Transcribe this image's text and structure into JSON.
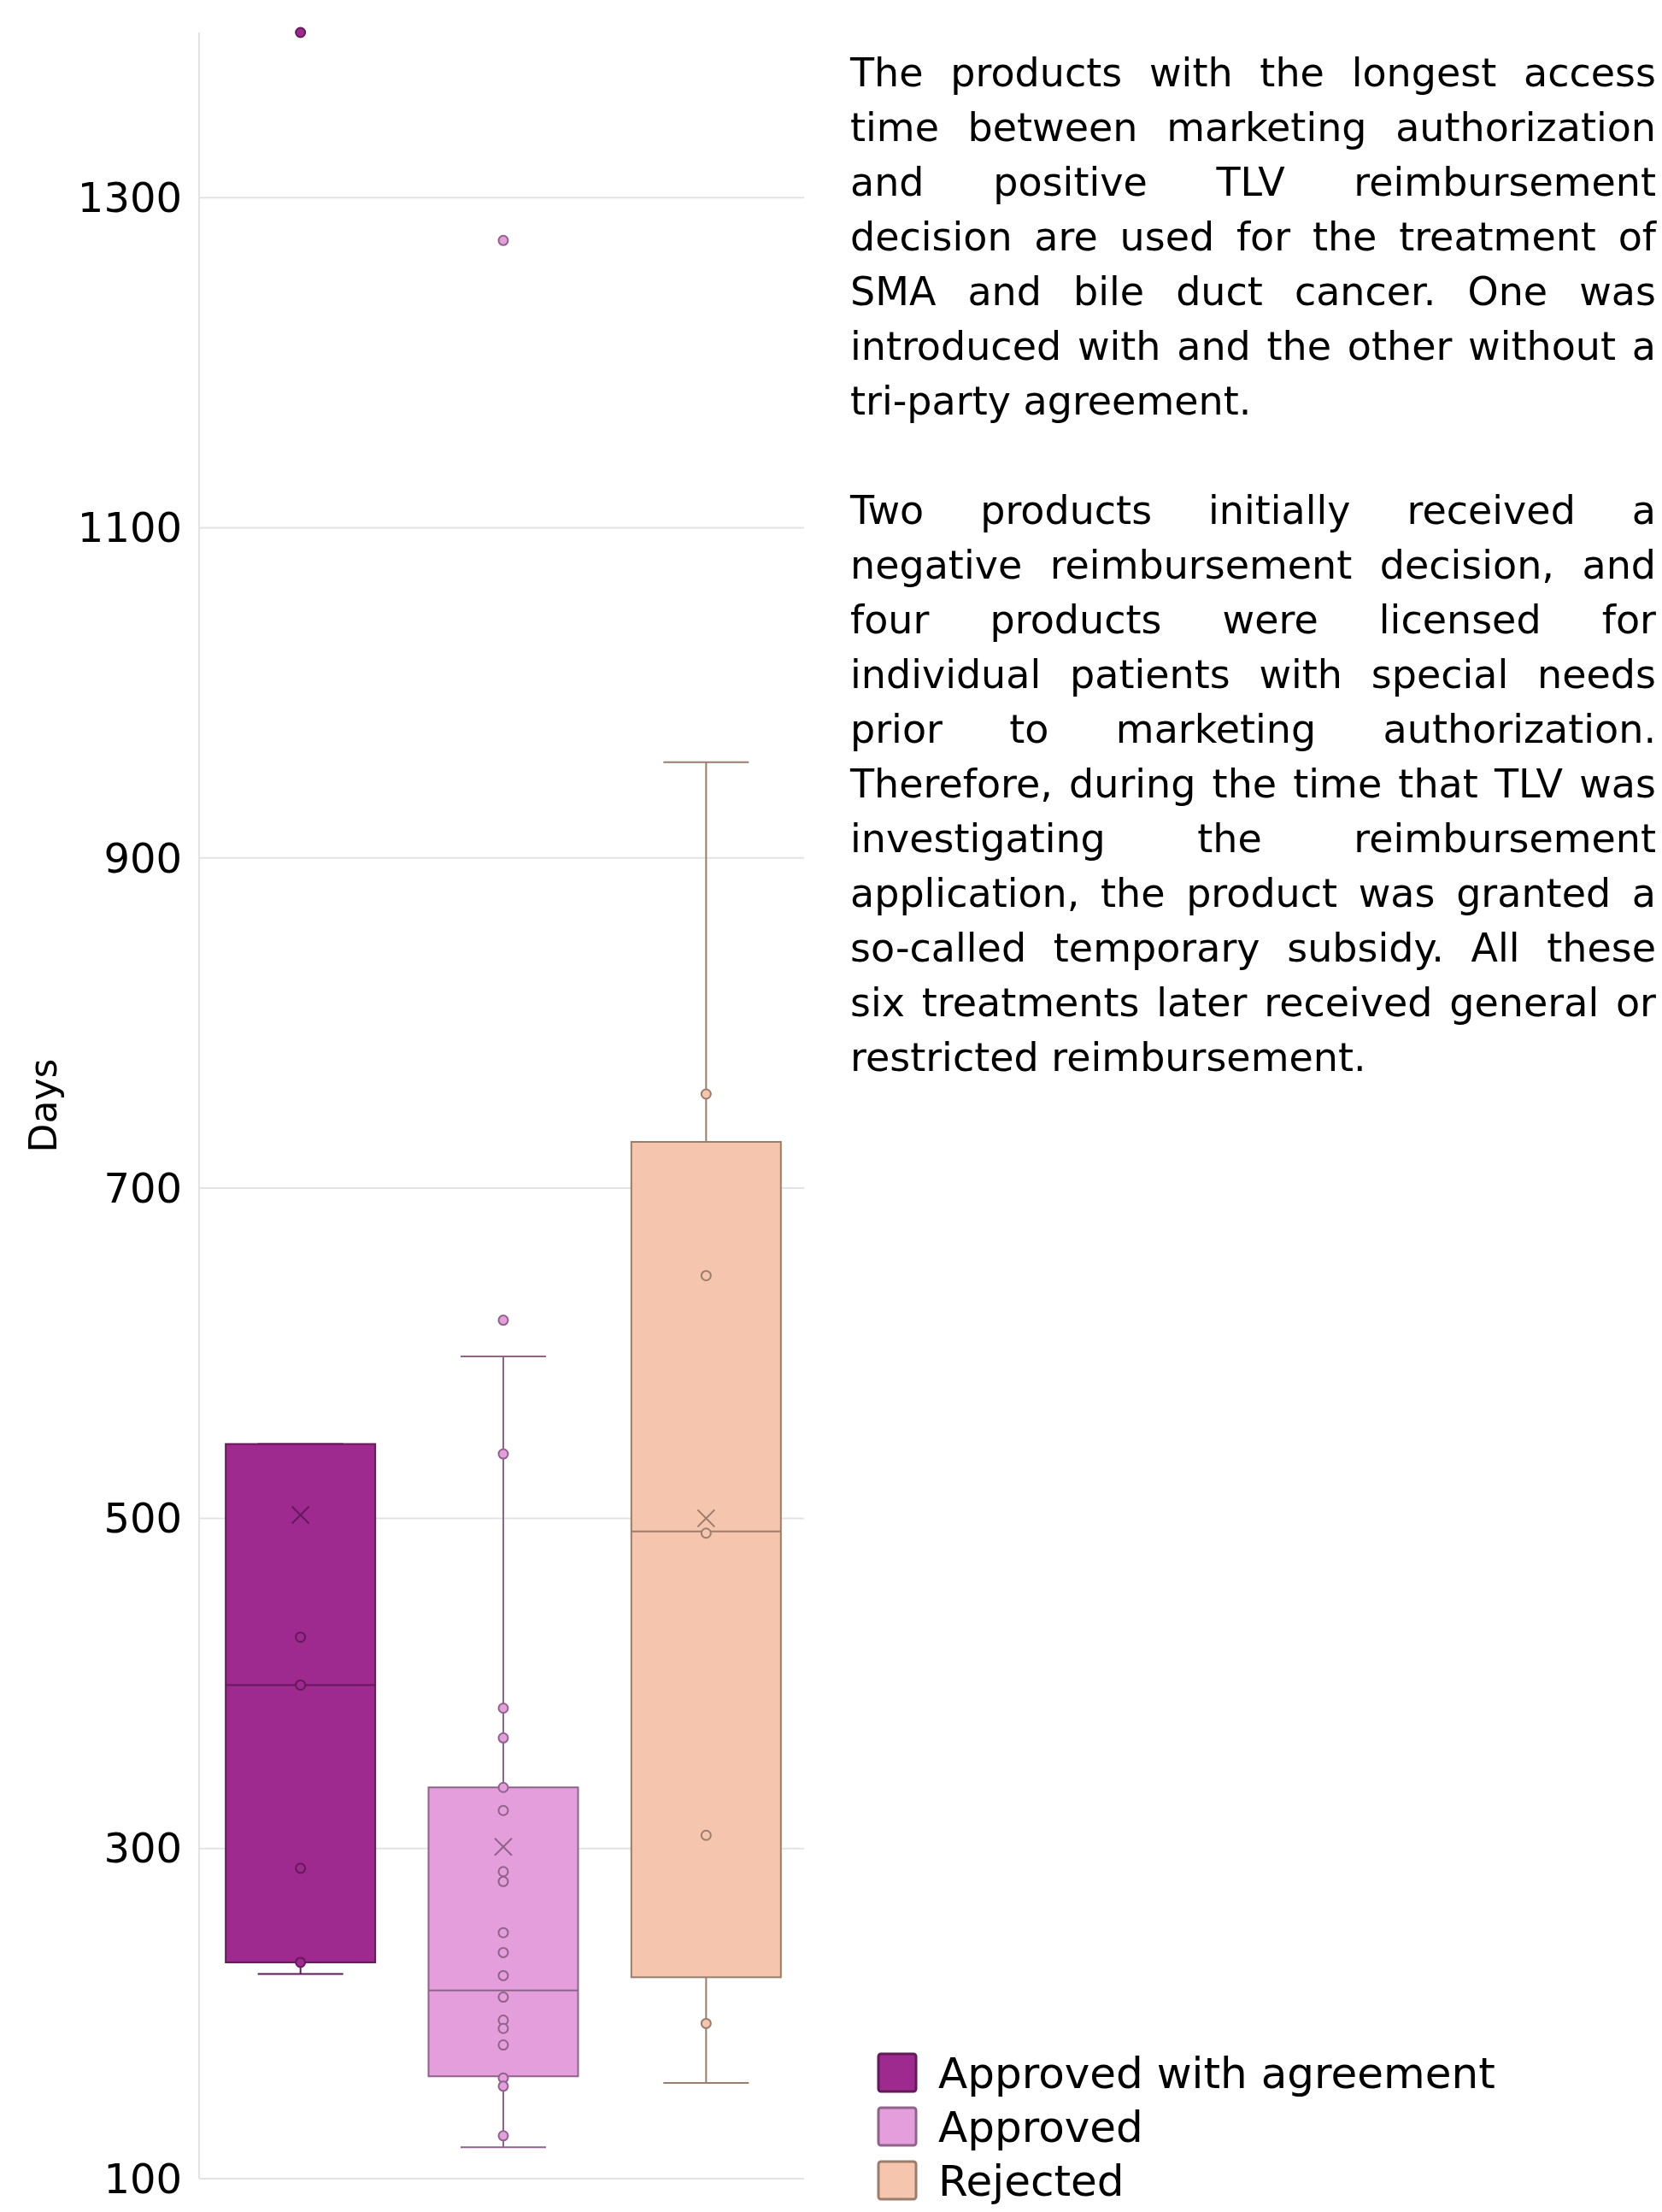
{
  "chart_data": {
    "type": "box",
    "ylabel": "Days",
    "categories": [
      null,
      null,
      null
    ],
    "ylim": [
      100,
      1400
    ],
    "yticks": [
      100,
      300,
      500,
      700,
      900,
      1100,
      1300
    ],
    "grid": "y",
    "legend": "bottom right",
    "marker": "circle",
    "series": [
      {
        "name": "Approved with agreement",
        "color": "#9e2a8f",
        "boxes": [
          {
            "low": 224,
            "q1": 231,
            "median": 399,
            "q3": 545,
            "high": 545,
            "mean": 502,
            "outliers": [
              1400
            ]
          },
          null,
          null
        ]
      },
      {
        "name": "Approved",
        "color": "#e39edb",
        "boxes": [
          null,
          {
            "low": 119,
            "q1": 162,
            "median": 214,
            "q3": 337,
            "high": 598,
            "mean": 301,
            "outliers": [
              620,
              1274
            ]
          },
          null
        ]
      },
      {
        "name": "Rejected",
        "color": "#f5c6ad",
        "boxes": [
          null,
          null,
          {
            "low": 158,
            "q1": 222,
            "median": 492,
            "q3": 728,
            "high": 958,
            "mean": 500
          }
        ]
      },
      {
        "type": "scatter",
        "colors": [
          "#9e2a8f",
          "#e39edb",
          "#f5c6ad"
        ],
        "values": [
          428,
          539,
          757
        ]
      },
      {
        "type": "scatter",
        "colors": [
          "#9e2a8f",
          "#e39edb",
          "#f5c6ad"
        ],
        "values": [
          399,
          385,
          647
        ]
      },
      {
        "type": "scatter",
        "colors": [
          "#9e2a8f",
          "#e39edb",
          "#f5c6ad"
        ],
        "values": [
          288,
          367,
          491
        ]
      },
      {
        "type": "scatter",
        "colors": [
          "#9e2a8f",
          "#e39edb",
          "#f5c6ad"
        ],
        "values": [
          231,
          337,
          308
        ]
      },
      {
        "type": "scatter",
        "colors": [
          "#9e2a8f",
          "#e39edb",
          "#f5c6ad"
        ],
        "values": [
          null,
          323,
          194
        ]
      },
      {
        "type": "scatter",
        "colors": [
          "#9e2a8f",
          "#e39edb",
          "#f5c6ad"
        ],
        "values": [
          null,
          286,
          null
        ]
      },
      {
        "type": "scatter",
        "colors": [
          "#9e2a8f",
          "#e39edb",
          "#f5c6ad"
        ],
        "values": [
          null,
          280,
          null
        ]
      },
      {
        "type": "scatter",
        "colors": [
          "#9e2a8f",
          "#e39edb",
          "#f5c6ad"
        ],
        "values": [
          null,
          249,
          null
        ]
      },
      {
        "type": "scatter",
        "colors": [
          "#9e2a8f",
          "#e39edb",
          "#f5c6ad"
        ],
        "values": [
          null,
          237,
          null
        ]
      },
      {
        "type": "scatter",
        "colors": [
          "#9e2a8f",
          "#e39edb",
          "#f5c6ad"
        ],
        "values": [
          null,
          223,
          null
        ]
      },
      {
        "type": "scatter",
        "colors": [
          "#9e2a8f",
          "#e39edb",
          "#f5c6ad"
        ],
        "values": [
          null,
          210,
          null
        ]
      },
      {
        "type": "scatter",
        "colors": [
          "#9e2a8f",
          "#e39edb",
          "#f5c6ad"
        ],
        "values": [
          null,
          196,
          null
        ]
      },
      {
        "type": "scatter",
        "colors": [
          "#9e2a8f",
          "#e39edb",
          "#f5c6ad"
        ],
        "values": [
          null,
          191,
          null
        ]
      },
      {
        "type": "scatter",
        "colors": [
          "#9e2a8f",
          "#e39edb",
          "#f5c6ad"
        ],
        "values": [
          null,
          181,
          null
        ]
      },
      {
        "type": "scatter",
        "colors": [
          "#9e2a8f",
          "#e39edb",
          "#f5c6ad"
        ],
        "values": [
          null,
          161,
          null
        ]
      },
      {
        "type": "scatter",
        "colors": [
          "#9e2a8f",
          "#e39edb",
          "#f5c6ad"
        ],
        "values": [
          null,
          156,
          null
        ]
      },
      {
        "type": "scatter",
        "colors": [
          "#9e2a8f",
          "#e39edb",
          "#f5c6ad"
        ],
        "values": [
          null,
          126,
          null
        ]
      }
    ],
    "annotations": [
      "The products with the longest access time between marketing authorization and positive TLV reimbursement decision are used for the treatment of SMA and bile duct cancer. One was introduced with and the other without a tri-party agreement.",
      "Two products initially received a negative reimbursement decision, and four products were licensed for individual patients with special needs prior to marketing authorization. Therefore, during the time that TLV was investigating the reimbursement application, the product was granted a so-called temporary subsidy. All these six treatments later received general or restricted reimbursement."
    ]
  }
}
